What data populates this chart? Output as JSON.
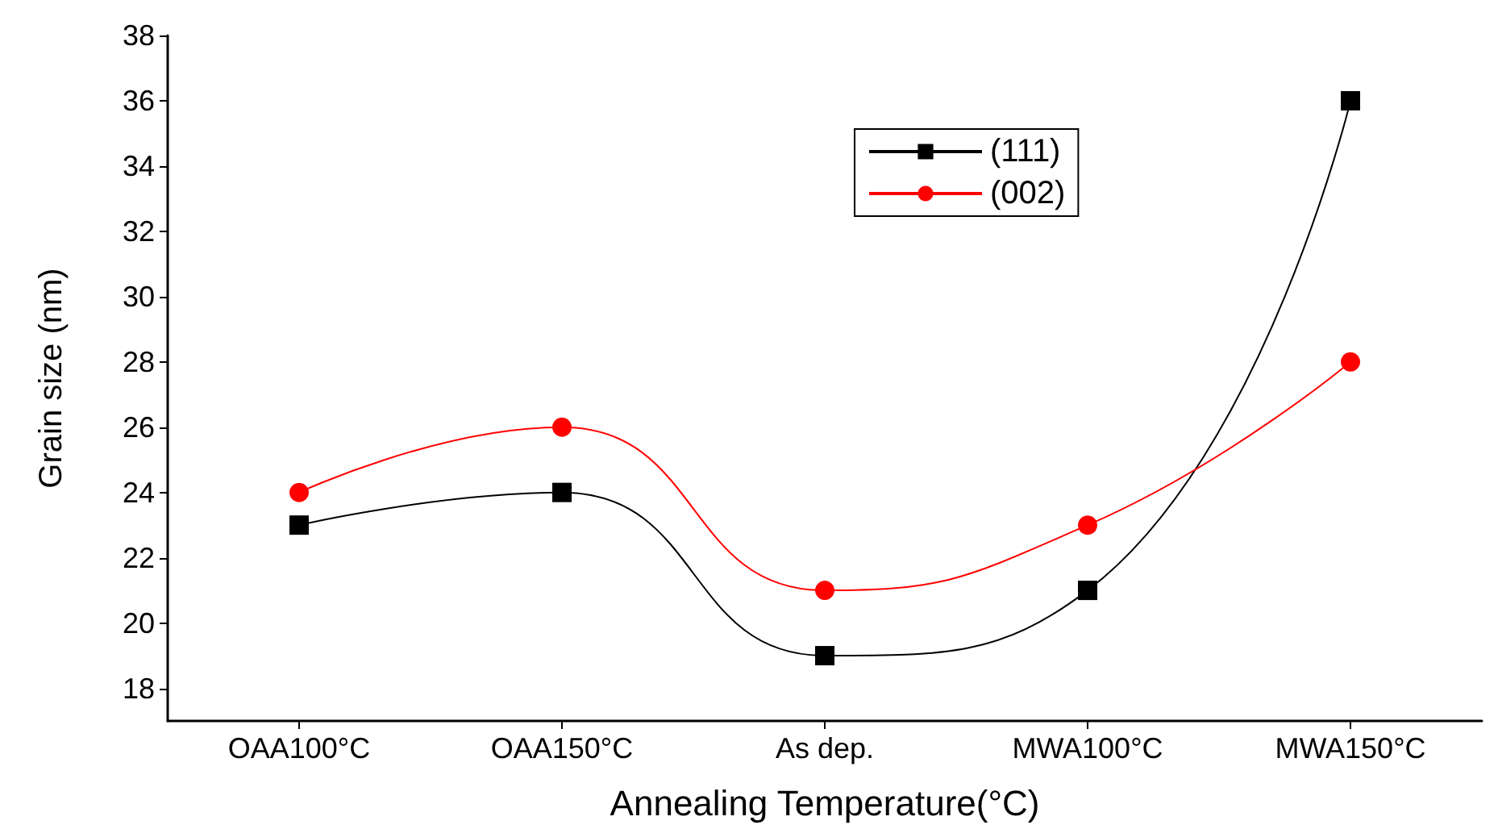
{
  "chart_data": {
    "type": "line",
    "xlabel": "Annealing Temperature(°C)",
    "ylabel": "Grain size (nm)",
    "categories": [
      "OAA100°C",
      "OAA150°C",
      "As dep.",
      "MWA100°C",
      "MWA150°C"
    ],
    "series": [
      {
        "name": "(111)",
        "color": "#000000",
        "marker": "square",
        "values": [
          23,
          24,
          19,
          21,
          36
        ]
      },
      {
        "name": "(002)",
        "color": "#ff0000",
        "marker": "circle",
        "values": [
          24,
          26,
          21,
          23,
          28
        ]
      }
    ],
    "ylim": [
      17,
      38
    ],
    "yticks": [
      18,
      20,
      22,
      24,
      26,
      28,
      30,
      32,
      34,
      36,
      38
    ],
    "grid": false,
    "legend": "top right",
    "line_style": "solid"
  }
}
